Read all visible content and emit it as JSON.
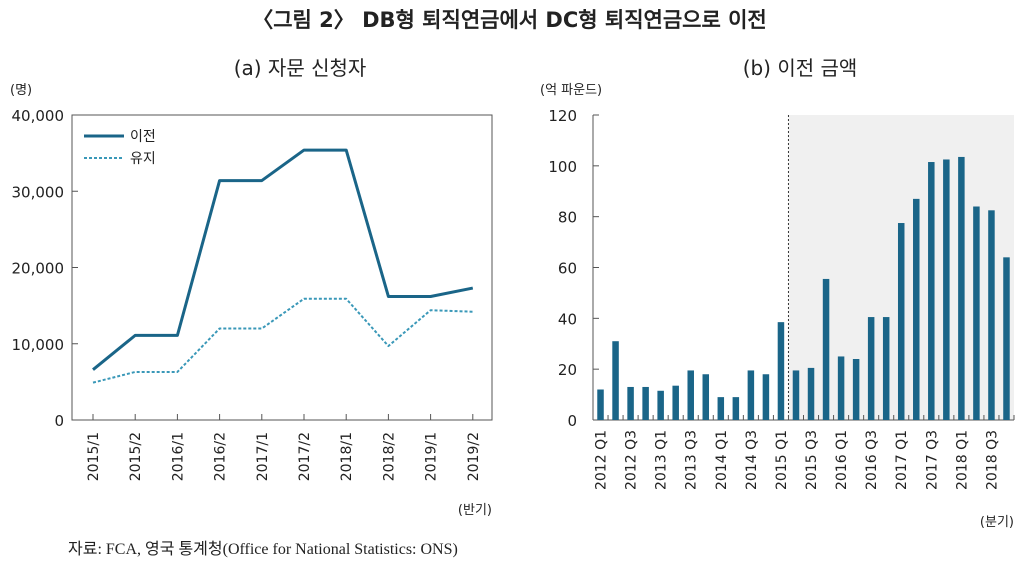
{
  "figure_title": "〈그림 2〉 DB형 퇴직연금에서 DC형 퇴직연금으로 이전",
  "source_note": "자료: FCA, 영국 통계청(Office for National Statistics: ONS)",
  "chart_data": [
    {
      "type": "line",
      "title": "(a) 자문 신청자",
      "ylabel": "(명)",
      "xlabel": "(반기)",
      "categories": [
        "2015/1",
        "2015/2",
        "2016/1",
        "2016/2",
        "2017/1",
        "2017/2",
        "2018/1",
        "2018/2",
        "2019/1",
        "2019/2"
      ],
      "series": [
        {
          "name": "이전",
          "style": "solid",
          "color": "#1a6588",
          "values": [
            6600,
            11100,
            11100,
            31400,
            31400,
            35400,
            35400,
            16200,
            16200,
            17300
          ]
        },
        {
          "name": "유지",
          "style": "dotted",
          "color": "#3a98b8",
          "values": [
            4900,
            6300,
            6300,
            12000,
            12000,
            15900,
            15900,
            9700,
            14400,
            14200
          ]
        }
      ],
      "ylim": [
        0,
        40000
      ],
      "yticks": [
        0,
        10000,
        20000,
        30000,
        40000
      ],
      "ytick_labels": [
        "0",
        "10,000",
        "20,000",
        "30,000",
        "40,000"
      ],
      "legend_position": "top-left",
      "grid": false
    },
    {
      "type": "bar",
      "title": "(b) 이전 금액",
      "ylabel": "(억 파운드)",
      "xlabel": "(분기)",
      "categories": [
        "2012 Q1",
        "2012 Q2",
        "2012 Q3",
        "2012 Q4",
        "2013 Q1",
        "2013 Q2",
        "2013 Q3",
        "2013 Q4",
        "2014 Q1",
        "2014 Q2",
        "2014 Q3",
        "2014 Q4",
        "2015 Q1",
        "2015 Q2",
        "2015 Q3",
        "2015 Q4",
        "2016 Q1",
        "2016 Q2",
        "2016 Q3",
        "2016 Q4",
        "2017 Q1",
        "2017 Q2",
        "2017 Q3",
        "2017 Q4",
        "2018 Q1",
        "2018 Q2",
        "2018 Q3",
        "2018 Q4"
      ],
      "tick_labels": [
        "2012 Q1",
        "2012 Q3",
        "2013 Q1",
        "2013 Q3",
        "2014 Q1",
        "2014 Q3",
        "2015 Q1",
        "2015 Q3",
        "2016 Q1",
        "2016 Q3",
        "2017 Q1",
        "2017 Q3",
        "2018 Q1",
        "2018 Q3"
      ],
      "values": [
        12,
        31,
        13,
        13,
        11.5,
        13.5,
        19.5,
        18,
        9,
        9,
        19.5,
        18,
        38.5,
        19.5,
        20.5,
        55.5,
        25,
        24,
        40.5,
        40.5,
        77.5,
        87,
        101.5,
        102.5,
        103.5,
        84,
        82.5,
        64
      ],
      "ylim": [
        0,
        120
      ],
      "yticks": [
        0,
        20,
        40,
        60,
        80,
        100,
        120
      ],
      "color": "#1a6588",
      "shade_from": "2015 Q2",
      "shade_color": "#f0f0f0",
      "grid": false
    }
  ]
}
